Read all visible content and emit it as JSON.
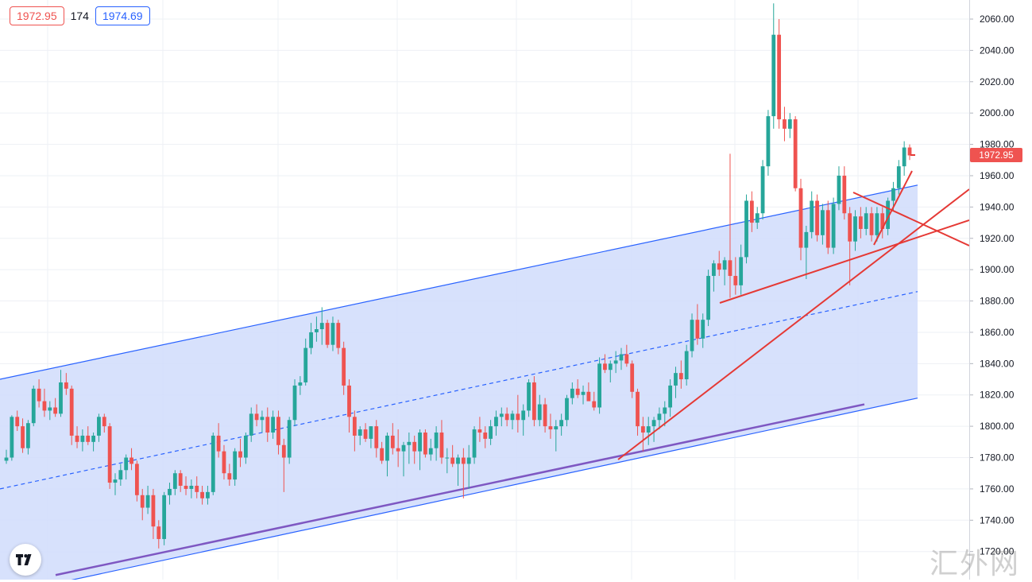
{
  "legend": {
    "bid": "1972.95",
    "spread": "174",
    "ask": "1974.69"
  },
  "colors": {
    "up": "#26a69a",
    "down": "#ef5350",
    "channel": "#2962ff",
    "channel_fill": "#d0dcfb",
    "trendline": "#e53935",
    "support": "#7e57c2",
    "grid": "#eef0f5"
  },
  "price_axis": {
    "labels": [
      "2060.00",
      "2040.00",
      "2020.00",
      "2000.00",
      "1980.00",
      "1960.00",
      "1940.00",
      "1920.00",
      "1900.00",
      "1880.00",
      "1860.00",
      "1840.00",
      "1820.00",
      "1800.00",
      "1780.00",
      "1760.00",
      "1740.00",
      "1720.00"
    ],
    "current_price": "1972.95"
  },
  "watermark": "汇外网",
  "logo_icon": "tradingview-logo-icon",
  "chart_data": {
    "type": "candlestick",
    "title": "",
    "ylim": [
      1710,
      2070
    ],
    "yticks": [
      2060,
      2040,
      2020,
      2000,
      1980,
      1960,
      1940,
      1920,
      1900,
      1880,
      1860,
      1840,
      1820,
      1800,
      1780,
      1760,
      1740,
      1720
    ],
    "last_price": 1972.95,
    "candles": [
      {
        "o": 1778,
        "h": 1785,
        "l": 1776,
        "c": 1780
      },
      {
        "o": 1780,
        "h": 1807,
        "l": 1778,
        "c": 1806
      },
      {
        "o": 1806,
        "h": 1810,
        "l": 1797,
        "c": 1800
      },
      {
        "o": 1800,
        "h": 1805,
        "l": 1783,
        "c": 1786
      },
      {
        "o": 1786,
        "h": 1804,
        "l": 1782,
        "c": 1802
      },
      {
        "o": 1802,
        "h": 1826,
        "l": 1800,
        "c": 1824
      },
      {
        "o": 1824,
        "h": 1830,
        "l": 1812,
        "c": 1816
      },
      {
        "o": 1816,
        "h": 1824,
        "l": 1806,
        "c": 1810
      },
      {
        "o": 1810,
        "h": 1816,
        "l": 1804,
        "c": 1812
      },
      {
        "o": 1812,
        "h": 1818,
        "l": 1806,
        "c": 1808
      },
      {
        "o": 1808,
        "h": 1836,
        "l": 1806,
        "c": 1828
      },
      {
        "o": 1828,
        "h": 1834,
        "l": 1820,
        "c": 1824
      },
      {
        "o": 1824,
        "h": 1826,
        "l": 1788,
        "c": 1794
      },
      {
        "o": 1794,
        "h": 1800,
        "l": 1786,
        "c": 1790
      },
      {
        "o": 1790,
        "h": 1798,
        "l": 1784,
        "c": 1794
      },
      {
        "o": 1794,
        "h": 1800,
        "l": 1788,
        "c": 1790
      },
      {
        "o": 1790,
        "h": 1796,
        "l": 1784,
        "c": 1794
      },
      {
        "o": 1794,
        "h": 1808,
        "l": 1790,
        "c": 1806
      },
      {
        "o": 1806,
        "h": 1808,
        "l": 1796,
        "c": 1800
      },
      {
        "o": 1800,
        "h": 1802,
        "l": 1760,
        "c": 1764
      },
      {
        "o": 1764,
        "h": 1770,
        "l": 1756,
        "c": 1766
      },
      {
        "o": 1766,
        "h": 1776,
        "l": 1762,
        "c": 1772
      },
      {
        "o": 1772,
        "h": 1782,
        "l": 1766,
        "c": 1780
      },
      {
        "o": 1780,
        "h": 1786,
        "l": 1772,
        "c": 1776
      },
      {
        "o": 1776,
        "h": 1778,
        "l": 1752,
        "c": 1756
      },
      {
        "o": 1756,
        "h": 1760,
        "l": 1740,
        "c": 1748
      },
      {
        "o": 1748,
        "h": 1762,
        "l": 1744,
        "c": 1756
      },
      {
        "o": 1756,
        "h": 1760,
        "l": 1728,
        "c": 1736
      },
      {
        "o": 1736,
        "h": 1740,
        "l": 1722,
        "c": 1728
      },
      {
        "o": 1728,
        "h": 1758,
        "l": 1724,
        "c": 1756
      },
      {
        "o": 1756,
        "h": 1764,
        "l": 1750,
        "c": 1760
      },
      {
        "o": 1760,
        "h": 1772,
        "l": 1756,
        "c": 1770
      },
      {
        "o": 1770,
        "h": 1772,
        "l": 1758,
        "c": 1762
      },
      {
        "o": 1762,
        "h": 1768,
        "l": 1756,
        "c": 1760
      },
      {
        "o": 1760,
        "h": 1766,
        "l": 1754,
        "c": 1762
      },
      {
        "o": 1762,
        "h": 1768,
        "l": 1754,
        "c": 1758
      },
      {
        "o": 1758,
        "h": 1762,
        "l": 1750,
        "c": 1754
      },
      {
        "o": 1754,
        "h": 1762,
        "l": 1750,
        "c": 1758
      },
      {
        "o": 1758,
        "h": 1796,
        "l": 1756,
        "c": 1794
      },
      {
        "o": 1794,
        "h": 1802,
        "l": 1780,
        "c": 1784
      },
      {
        "o": 1784,
        "h": 1788,
        "l": 1766,
        "c": 1770
      },
      {
        "o": 1770,
        "h": 1776,
        "l": 1762,
        "c": 1766
      },
      {
        "o": 1766,
        "h": 1786,
        "l": 1762,
        "c": 1784
      },
      {
        "o": 1784,
        "h": 1792,
        "l": 1774,
        "c": 1780
      },
      {
        "o": 1780,
        "h": 1796,
        "l": 1776,
        "c": 1794
      },
      {
        "o": 1794,
        "h": 1812,
        "l": 1790,
        "c": 1808
      },
      {
        "o": 1808,
        "h": 1814,
        "l": 1800,
        "c": 1804
      },
      {
        "o": 1804,
        "h": 1810,
        "l": 1796,
        "c": 1806
      },
      {
        "o": 1806,
        "h": 1812,
        "l": 1790,
        "c": 1796
      },
      {
        "o": 1796,
        "h": 1810,
        "l": 1792,
        "c": 1806
      },
      {
        "o": 1806,
        "h": 1810,
        "l": 1782,
        "c": 1788
      },
      {
        "o": 1788,
        "h": 1792,
        "l": 1758,
        "c": 1780
      },
      {
        "o": 1780,
        "h": 1806,
        "l": 1776,
        "c": 1804
      },
      {
        "o": 1804,
        "h": 1830,
        "l": 1800,
        "c": 1826
      },
      {
        "o": 1826,
        "h": 1832,
        "l": 1820,
        "c": 1828
      },
      {
        "o": 1828,
        "h": 1856,
        "l": 1826,
        "c": 1850
      },
      {
        "o": 1850,
        "h": 1866,
        "l": 1846,
        "c": 1860
      },
      {
        "o": 1860,
        "h": 1870,
        "l": 1854,
        "c": 1862
      },
      {
        "o": 1862,
        "h": 1876,
        "l": 1852,
        "c": 1866
      },
      {
        "o": 1866,
        "h": 1868,
        "l": 1850,
        "c": 1852
      },
      {
        "o": 1852,
        "h": 1870,
        "l": 1848,
        "c": 1866
      },
      {
        "o": 1866,
        "h": 1868,
        "l": 1846,
        "c": 1850
      },
      {
        "o": 1850,
        "h": 1854,
        "l": 1820,
        "c": 1826
      },
      {
        "o": 1826,
        "h": 1830,
        "l": 1796,
        "c": 1806
      },
      {
        "o": 1806,
        "h": 1810,
        "l": 1784,
        "c": 1794
      },
      {
        "o": 1794,
        "h": 1800,
        "l": 1788,
        "c": 1798
      },
      {
        "o": 1798,
        "h": 1802,
        "l": 1790,
        "c": 1792
      },
      {
        "o": 1792,
        "h": 1800,
        "l": 1786,
        "c": 1800
      },
      {
        "o": 1800,
        "h": 1804,
        "l": 1780,
        "c": 1786
      },
      {
        "o": 1786,
        "h": 1790,
        "l": 1776,
        "c": 1778
      },
      {
        "o": 1778,
        "h": 1796,
        "l": 1768,
        "c": 1794
      },
      {
        "o": 1794,
        "h": 1802,
        "l": 1782,
        "c": 1786
      },
      {
        "o": 1786,
        "h": 1798,
        "l": 1774,
        "c": 1784
      },
      {
        "o": 1784,
        "h": 1790,
        "l": 1768,
        "c": 1788
      },
      {
        "o": 1788,
        "h": 1796,
        "l": 1776,
        "c": 1790
      },
      {
        "o": 1790,
        "h": 1794,
        "l": 1776,
        "c": 1784
      },
      {
        "o": 1784,
        "h": 1798,
        "l": 1772,
        "c": 1796
      },
      {
        "o": 1796,
        "h": 1798,
        "l": 1780,
        "c": 1782
      },
      {
        "o": 1782,
        "h": 1792,
        "l": 1778,
        "c": 1786
      },
      {
        "o": 1786,
        "h": 1800,
        "l": 1778,
        "c": 1796
      },
      {
        "o": 1796,
        "h": 1804,
        "l": 1776,
        "c": 1780
      },
      {
        "o": 1780,
        "h": 1786,
        "l": 1770,
        "c": 1780
      },
      {
        "o": 1780,
        "h": 1788,
        "l": 1774,
        "c": 1776
      },
      {
        "o": 1776,
        "h": 1782,
        "l": 1762,
        "c": 1780
      },
      {
        "o": 1780,
        "h": 1786,
        "l": 1754,
        "c": 1776
      },
      {
        "o": 1776,
        "h": 1788,
        "l": 1760,
        "c": 1780
      },
      {
        "o": 1780,
        "h": 1800,
        "l": 1776,
        "c": 1798
      },
      {
        "o": 1798,
        "h": 1806,
        "l": 1790,
        "c": 1796
      },
      {
        "o": 1796,
        "h": 1800,
        "l": 1786,
        "c": 1792
      },
      {
        "o": 1792,
        "h": 1804,
        "l": 1788,
        "c": 1800
      },
      {
        "o": 1800,
        "h": 1810,
        "l": 1794,
        "c": 1806
      },
      {
        "o": 1806,
        "h": 1812,
        "l": 1800,
        "c": 1808
      },
      {
        "o": 1808,
        "h": 1812,
        "l": 1800,
        "c": 1804
      },
      {
        "o": 1804,
        "h": 1810,
        "l": 1798,
        "c": 1808
      },
      {
        "o": 1808,
        "h": 1820,
        "l": 1796,
        "c": 1804
      },
      {
        "o": 1804,
        "h": 1814,
        "l": 1794,
        "c": 1810
      },
      {
        "o": 1810,
        "h": 1830,
        "l": 1806,
        "c": 1828
      },
      {
        "o": 1828,
        "h": 1832,
        "l": 1800,
        "c": 1804
      },
      {
        "o": 1804,
        "h": 1820,
        "l": 1800,
        "c": 1814
      },
      {
        "o": 1814,
        "h": 1818,
        "l": 1796,
        "c": 1800
      },
      {
        "o": 1800,
        "h": 1808,
        "l": 1792,
        "c": 1798
      },
      {
        "o": 1798,
        "h": 1804,
        "l": 1784,
        "c": 1800
      },
      {
        "o": 1800,
        "h": 1808,
        "l": 1794,
        "c": 1804
      },
      {
        "o": 1804,
        "h": 1820,
        "l": 1800,
        "c": 1818
      },
      {
        "o": 1818,
        "h": 1828,
        "l": 1814,
        "c": 1824
      },
      {
        "o": 1824,
        "h": 1830,
        "l": 1818,
        "c": 1820
      },
      {
        "o": 1820,
        "h": 1826,
        "l": 1814,
        "c": 1822
      },
      {
        "o": 1822,
        "h": 1828,
        "l": 1818,
        "c": 1816
      },
      {
        "o": 1816,
        "h": 1822,
        "l": 1810,
        "c": 1812
      },
      {
        "o": 1812,
        "h": 1844,
        "l": 1808,
        "c": 1840
      },
      {
        "o": 1840,
        "h": 1846,
        "l": 1834,
        "c": 1836
      },
      {
        "o": 1836,
        "h": 1842,
        "l": 1828,
        "c": 1840
      },
      {
        "o": 1840,
        "h": 1848,
        "l": 1834,
        "c": 1842
      },
      {
        "o": 1842,
        "h": 1850,
        "l": 1836,
        "c": 1846
      },
      {
        "o": 1846,
        "h": 1852,
        "l": 1838,
        "c": 1840
      },
      {
        "o": 1840,
        "h": 1842,
        "l": 1818,
        "c": 1822
      },
      {
        "o": 1822,
        "h": 1824,
        "l": 1794,
        "c": 1800
      },
      {
        "o": 1800,
        "h": 1806,
        "l": 1784,
        "c": 1796
      },
      {
        "o": 1796,
        "h": 1806,
        "l": 1788,
        "c": 1800
      },
      {
        "o": 1800,
        "h": 1806,
        "l": 1790,
        "c": 1804
      },
      {
        "o": 1804,
        "h": 1812,
        "l": 1798,
        "c": 1808
      },
      {
        "o": 1808,
        "h": 1816,
        "l": 1800,
        "c": 1812
      },
      {
        "o": 1812,
        "h": 1830,
        "l": 1806,
        "c": 1826
      },
      {
        "o": 1826,
        "h": 1838,
        "l": 1818,
        "c": 1834
      },
      {
        "o": 1834,
        "h": 1842,
        "l": 1824,
        "c": 1830
      },
      {
        "o": 1830,
        "h": 1852,
        "l": 1826,
        "c": 1848
      },
      {
        "o": 1848,
        "h": 1872,
        "l": 1844,
        "c": 1868
      },
      {
        "o": 1868,
        "h": 1878,
        "l": 1852,
        "c": 1856
      },
      {
        "o": 1856,
        "h": 1872,
        "l": 1850,
        "c": 1868
      },
      {
        "o": 1868,
        "h": 1900,
        "l": 1864,
        "c": 1896
      },
      {
        "o": 1896,
        "h": 1906,
        "l": 1886,
        "c": 1904
      },
      {
        "o": 1904,
        "h": 1912,
        "l": 1896,
        "c": 1900
      },
      {
        "o": 1900,
        "h": 1908,
        "l": 1890,
        "c": 1906
      },
      {
        "o": 1906,
        "h": 1974,
        "l": 1882,
        "c": 1896
      },
      {
        "o": 1896,
        "h": 1908,
        "l": 1884,
        "c": 1890
      },
      {
        "o": 1890,
        "h": 1916,
        "l": 1884,
        "c": 1908
      },
      {
        "o": 1908,
        "h": 1948,
        "l": 1904,
        "c": 1944
      },
      {
        "o": 1944,
        "h": 1950,
        "l": 1924,
        "c": 1930
      },
      {
        "o": 1930,
        "h": 1940,
        "l": 1926,
        "c": 1936
      },
      {
        "o": 1936,
        "h": 1970,
        "l": 1932,
        "c": 1966
      },
      {
        "o": 1966,
        "h": 2002,
        "l": 1960,
        "c": 1998
      },
      {
        "o": 1998,
        "h": 2070,
        "l": 1990,
        "c": 2050
      },
      {
        "o": 2050,
        "h": 2060,
        "l": 1990,
        "c": 1996
      },
      {
        "o": 1996,
        "h": 2004,
        "l": 1982,
        "c": 1990
      },
      {
        "o": 1990,
        "h": 2000,
        "l": 1984,
        "c": 1996
      },
      {
        "o": 1996,
        "h": 1998,
        "l": 1950,
        "c": 1952
      },
      {
        "o": 1952,
        "h": 1958,
        "l": 1906,
        "c": 1914
      },
      {
        "o": 1914,
        "h": 1928,
        "l": 1894,
        "c": 1924
      },
      {
        "o": 1924,
        "h": 1950,
        "l": 1920,
        "c": 1944
      },
      {
        "o": 1944,
        "h": 1948,
        "l": 1918,
        "c": 1922
      },
      {
        "o": 1922,
        "h": 1942,
        "l": 1916,
        "c": 1938
      },
      {
        "o": 1938,
        "h": 1944,
        "l": 1910,
        "c": 1914
      },
      {
        "o": 1914,
        "h": 1946,
        "l": 1910,
        "c": 1942
      },
      {
        "o": 1942,
        "h": 1966,
        "l": 1938,
        "c": 1960
      },
      {
        "o": 1960,
        "h": 1966,
        "l": 1932,
        "c": 1936
      },
      {
        "o": 1936,
        "h": 1940,
        "l": 1890,
        "c": 1918
      },
      {
        "o": 1918,
        "h": 1938,
        "l": 1912,
        "c": 1934
      },
      {
        "o": 1934,
        "h": 1940,
        "l": 1920,
        "c": 1926
      },
      {
        "o": 1926,
        "h": 1940,
        "l": 1922,
        "c": 1936
      },
      {
        "o": 1936,
        "h": 1940,
        "l": 1918,
        "c": 1922
      },
      {
        "o": 1922,
        "h": 1940,
        "l": 1918,
        "c": 1936
      },
      {
        "o": 1936,
        "h": 1940,
        "l": 1920,
        "c": 1926
      },
      {
        "o": 1926,
        "h": 1946,
        "l": 1922,
        "c": 1944
      },
      {
        "o": 1944,
        "h": 1956,
        "l": 1938,
        "c": 1952
      },
      {
        "o": 1952,
        "h": 1970,
        "l": 1948,
        "c": 1966
      },
      {
        "o": 1966,
        "h": 1982,
        "l": 1960,
        "c": 1978
      },
      {
        "o": 1978,
        "h": 1980,
        "l": 1970,
        "c": 1972.95
      }
    ],
    "drawings": [
      {
        "name": "channel-upper-line",
        "from": [
          0,
          1830
        ],
        "to": [
          1.0,
          1954
        ]
      },
      {
        "name": "channel-mid-line",
        "from": [
          0,
          1760
        ],
        "to": [
          1.0,
          1886
        ]
      },
      {
        "name": "channel-lower-line",
        "from": [
          0,
          1692
        ],
        "to": [
          1.0,
          1818
        ]
      },
      {
        "name": "trend-line-1",
        "from": [
          0.615,
          1780
        ],
        "to": [
          1.07,
          1952
        ]
      },
      {
        "name": "trend-line-2",
        "from": [
          0.718,
          1880
        ],
        "to": [
          1.07,
          1932
        ]
      }
    ]
  }
}
